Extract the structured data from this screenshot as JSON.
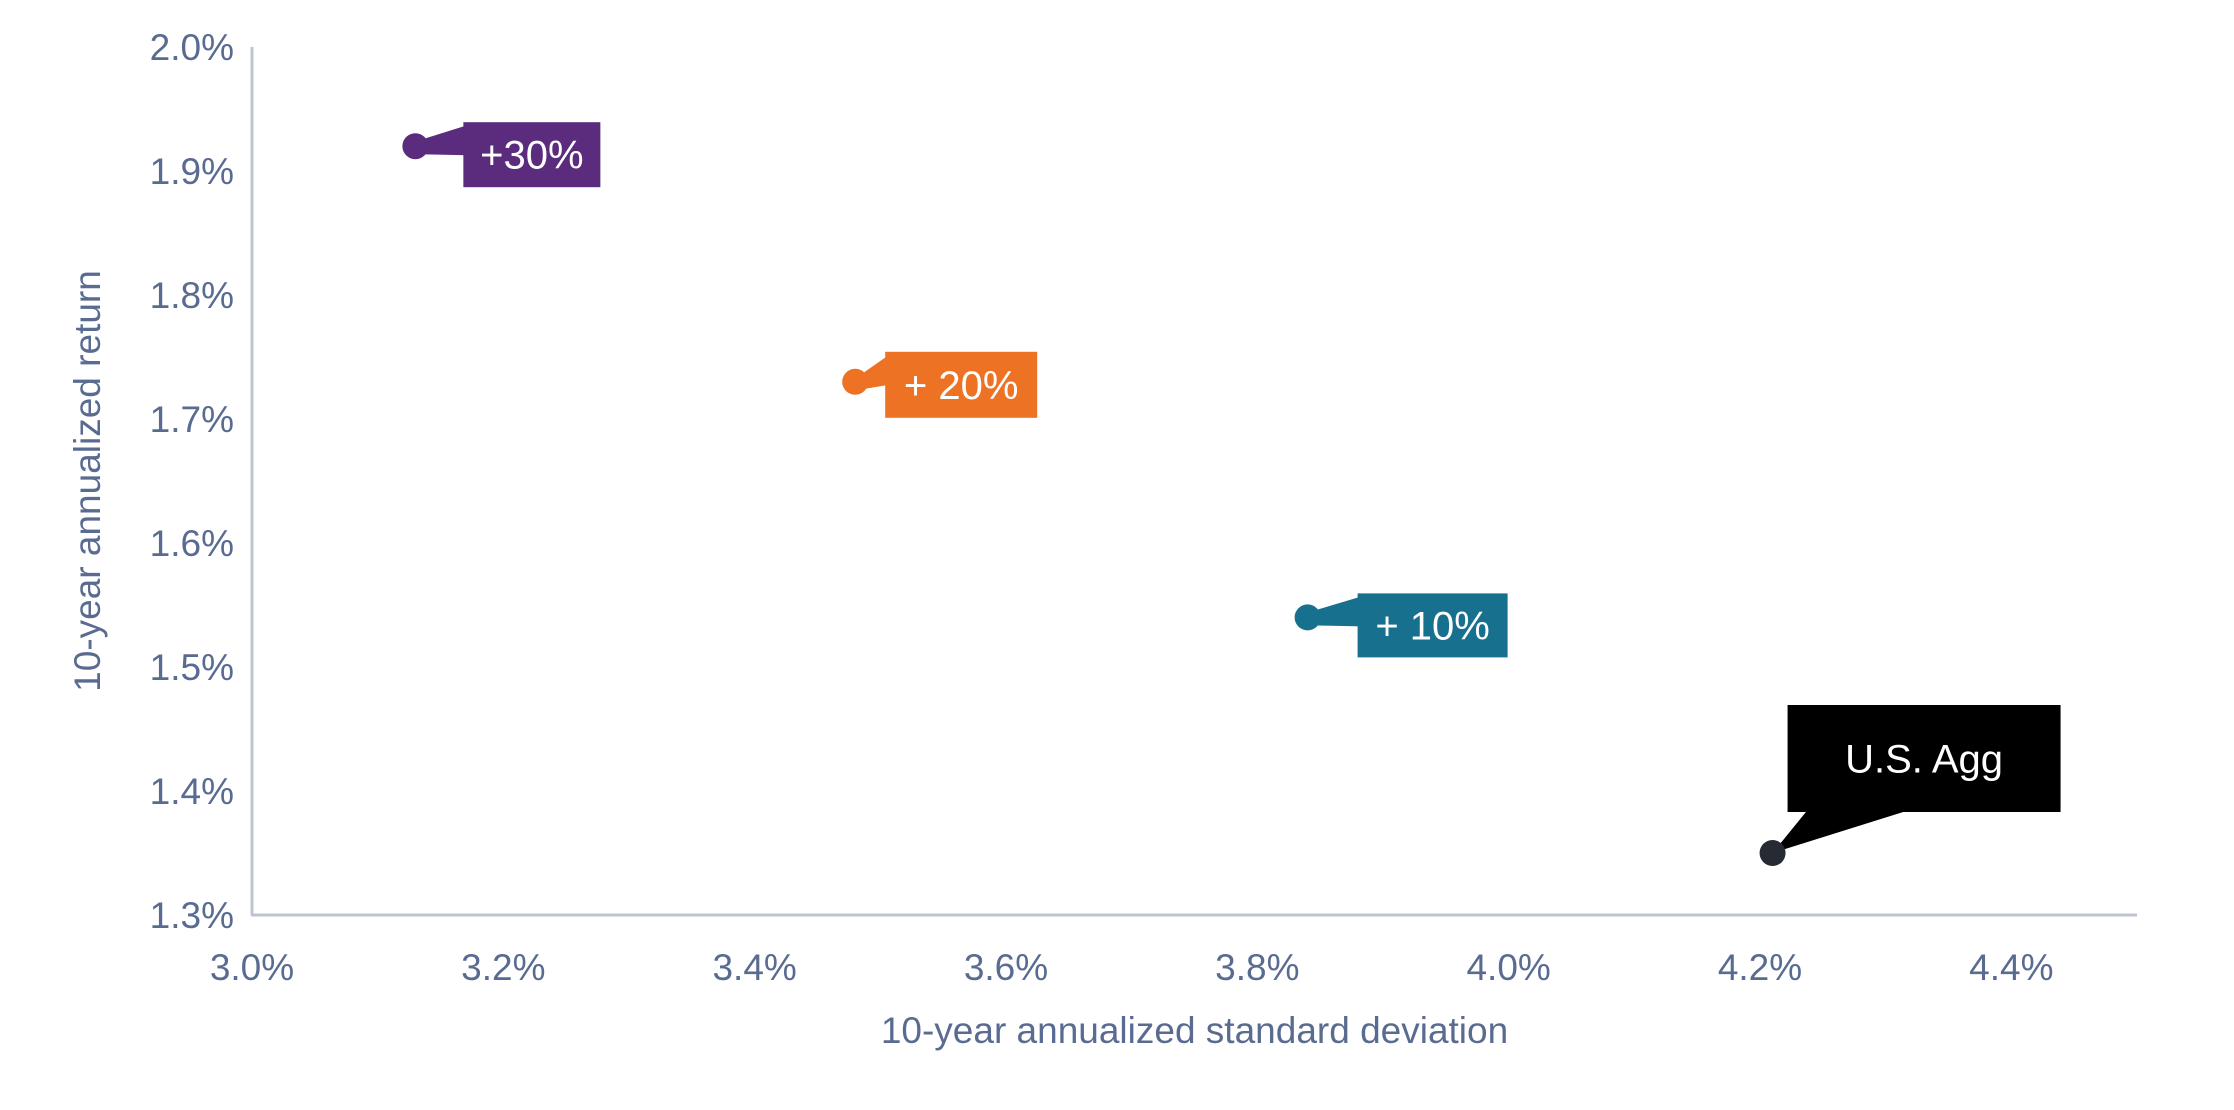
{
  "chart_data": {
    "type": "scatter",
    "title": "",
    "xlabel": "10-year annualized standard deviation",
    "ylabel": "10-year annualized return",
    "xlim": [
      3.0,
      4.5
    ],
    "ylim": [
      1.3,
      2.0
    ],
    "grid": false,
    "legend": "none",
    "background_color": "#ffffff",
    "axis_line_color": "#bfc5d0",
    "axis_text_color": "#5a6b92",
    "x_ticks": [
      {
        "v": 3.0,
        "label": "3.0%"
      },
      {
        "v": 3.2,
        "label": "3.2%"
      },
      {
        "v": 3.4,
        "label": "3.4%"
      },
      {
        "v": 3.6,
        "label": "3.6%"
      },
      {
        "v": 3.8,
        "label": "3.8%"
      },
      {
        "v": 4.0,
        "label": "4.0%"
      },
      {
        "v": 4.2,
        "label": "4.2%"
      },
      {
        "v": 4.4,
        "label": "4.4%"
      }
    ],
    "y_ticks": [
      {
        "v": 2.0,
        "label": "2.0%"
      },
      {
        "v": 1.9,
        "label": "1.9%"
      },
      {
        "v": 1.8,
        "label": "1.8%"
      },
      {
        "v": 1.7,
        "label": "1.7%"
      },
      {
        "v": 1.6,
        "label": "1.6%"
      },
      {
        "v": 1.5,
        "label": "1.5%"
      },
      {
        "v": 1.4,
        "label": "1.4%"
      },
      {
        "v": 1.3,
        "label": "1.3%"
      }
    ],
    "points": [
      {
        "name": "+30%",
        "label": "+30%",
        "x": 3.13,
        "y": 1.92,
        "color": "#5b2b7d",
        "marker_color": "#5b2b7d",
        "label_text_color": "#ffffff",
        "label_offset": [
          48,
          -24
        ],
        "label_size": [
          137,
          65
        ],
        "connector": "left"
      },
      {
        "name": "+ 20%",
        "label": "+ 20%",
        "x": 3.48,
        "y": 1.73,
        "color": "#ed7223",
        "marker_color": "#ed7223",
        "label_text_color": "#ffffff",
        "label_offset": [
          30,
          -30
        ],
        "label_size": [
          152,
          66
        ],
        "connector": "left"
      },
      {
        "name": "+ 10%",
        "label": "+ 10%",
        "x": 3.84,
        "y": 1.54,
        "color": "#17708e",
        "marker_color": "#17708e",
        "label_text_color": "#ffffff",
        "label_offset": [
          50,
          -24
        ],
        "label_size": [
          150,
          64
        ],
        "connector": "left"
      },
      {
        "name": "U.S. Agg",
        "label": "U.S. Agg",
        "x": 4.21,
        "y": 1.35,
        "color": "#000000",
        "marker_color": "#262b33",
        "label_text_color": "#ffffff",
        "label_offset": [
          15,
          -148
        ],
        "label_size": [
          273,
          107
        ],
        "connector": "bottom"
      }
    ]
  }
}
